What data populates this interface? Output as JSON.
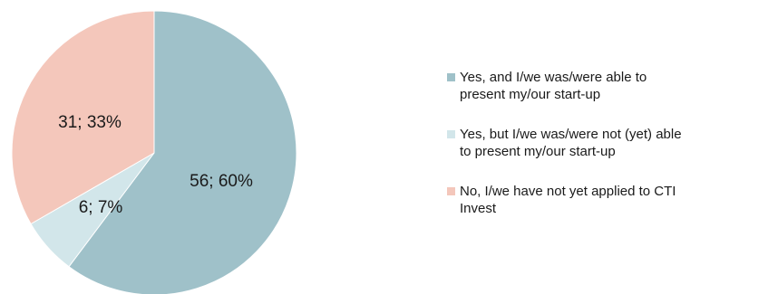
{
  "chart_data": {
    "type": "pie",
    "title": "",
    "legend_position": "right",
    "slices": [
      {
        "legend_lines": [
          "Yes, and I/we was/were able to",
          "present my/our start-up"
        ],
        "value": 56,
        "percent": 60,
        "label": "56; 60%",
        "color": "#9fc1c9"
      },
      {
        "legend_lines": [
          "Yes, but I/we was/were not (yet) able",
          "to present my/our start-up"
        ],
        "value": 6,
        "percent": 7,
        "label": "6; 7%",
        "color": "#d2e6ea"
      },
      {
        "legend_lines": [
          "No, I/we have not yet applied to CTI",
          "Invest"
        ],
        "value": 31,
        "percent": 33,
        "label": "31; 33%",
        "color": "#f4c7bb"
      }
    ]
  }
}
